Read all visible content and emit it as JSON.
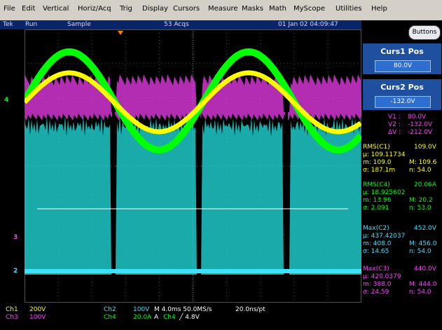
{
  "menu": [
    "File",
    "Edit",
    "Vertical",
    "Horiz/Acq",
    "Trig",
    "Display",
    "Cursors",
    "Measure",
    "Masks",
    "Math",
    "MyScope",
    "Utilities",
    "Help"
  ],
  "status": {
    "brand": "Tek",
    "run_state": "Run",
    "mode": "Sample",
    "acqs": "53 Acqs",
    "datetime": "01 Jan 02 04:09:47"
  },
  "buttons_label": "Buttons",
  "curs1": {
    "title": "Curs1 Pos",
    "value": "80.0V"
  },
  "curs2": {
    "title": "Curs2 Pos",
    "value": "-132.0V"
  },
  "cursor_readout": [
    {
      "label": "V1 :",
      "value": "80.0V"
    },
    {
      "label": "V2 :",
      "value": "-132.0V"
    },
    {
      "label": "ΔV :",
      "value": "-212.0V"
    }
  ],
  "measurements": [
    {
      "color": "#ffff00",
      "name": "RMS(C1)",
      "value": "109.0V",
      "mu": "µ: 109.11734",
      "m": "m: 109.0",
      "M": "M: 109.6",
      "sigma": "σ: 187.1m",
      "n": "n: 54.0"
    },
    {
      "color": "#00ff00",
      "name": "RMS(C4)",
      "value": "20.06A",
      "mu": "µ: 18.925602",
      "m": "m: 13.96",
      "M": "M: 20.2",
      "sigma": "σ: 2.091",
      "n": "n: 53.0"
    },
    {
      "color": "#40e0ff",
      "name": "Max(C2)",
      "value": "452.0V",
      "mu": "µ: 437.42037",
      "m": "m: 408.0",
      "M": "M: 456.0",
      "sigma": "σ: 14.65",
      "n": "n: 54.0"
    },
    {
      "color": "#ff40ff",
      "name": "Max(C3)",
      "value": "440.0V",
      "mu": "µ: 420.0379",
      "m": "m: 388.0",
      "M": "M: 444.0",
      "sigma": "σ: 24.59",
      "n": "n: 54.0"
    }
  ],
  "channel_settings": [
    {
      "ch": "Ch1",
      "scale": "200V",
      "color": "#ffff00"
    },
    {
      "ch": "Ch3",
      "scale": "100V",
      "color": "#ff40ff"
    },
    {
      "ch": "Ch2",
      "scale": "100V",
      "color": "#40e0ff"
    },
    {
      "ch": "Ch4",
      "scale": "20.0A",
      "color": "#00ff00"
    }
  ],
  "timebase": {
    "line1": "M 4.0ms 50.0MS/s",
    "record": "20.0ns/pt",
    "trigger_prefix": "A",
    "trigger_ch": "Ch4",
    "trigger_level": "╱ 4.8V"
  },
  "markers": {
    "ch4": "4",
    "ch3": "3",
    "ch2": "2"
  },
  "colors": {
    "ch1": "#ffff00",
    "ch2": "#40e0ff",
    "ch3": "#ff40ff",
    "ch4": "#00ff00",
    "cursor": "#ffffff"
  }
}
